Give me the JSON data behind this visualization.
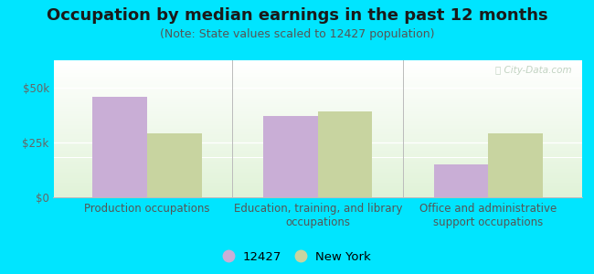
{
  "title": "Occupation by median earnings in the past 12 months",
  "subtitle": "(Note: State values scaled to 12427 population)",
  "categories": [
    "Production occupations",
    "Education, training, and library\noccupations",
    "Office and administrative\nsupport occupations"
  ],
  "values_12427": [
    46000,
    37000,
    15000
  ],
  "values_newyork": [
    29000,
    39000,
    29000
  ],
  "bar_color_12427": "#c9aed6",
  "bar_color_newyork": "#c8d4a0",
  "background_outer": "#00e5ff",
  "ylim": [
    0,
    62500
  ],
  "yticks": [
    0,
    25000,
    50000
  ],
  "ytick_labels": [
    "$0",
    "$25k",
    "$50k"
  ],
  "legend_label_12427": "12427",
  "legend_label_newyork": "New York",
  "bar_width": 0.32,
  "group_positions": [
    0,
    1,
    2
  ],
  "title_fontsize": 13,
  "subtitle_fontsize": 9,
  "axis_label_fontsize": 8.5,
  "legend_fontsize": 9.5
}
